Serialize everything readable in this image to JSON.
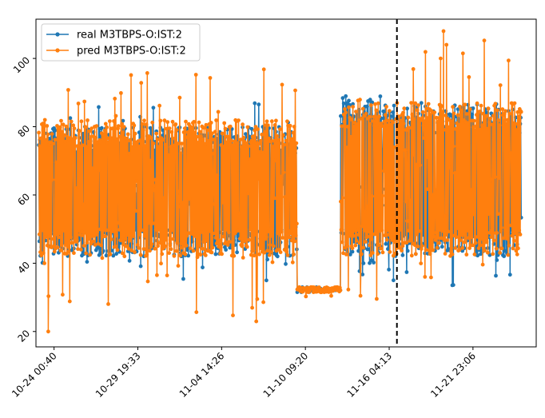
{
  "chart_data": {
    "type": "line",
    "title": "",
    "xlabel": "",
    "ylabel": "",
    "x_tick_labels": [
      "10-24 00:40",
      "10-29 19:33",
      "11-04 14:26",
      "11-10 09:20",
      "11-16 04:13",
      "11-21 23:06"
    ],
    "x_tick_positions_days": [
      0,
      5.786,
      11.573,
      17.359,
      23.146,
      28.932
    ],
    "x_range_days": [
      -1.25,
      33.3
    ],
    "y_ticks": [
      20,
      40,
      60,
      80,
      100
    ],
    "ylim": [
      15.5,
      111.5
    ],
    "grid": false,
    "legend_position": "upper-left",
    "vertical_line": {
      "x_day": 23.68,
      "style": "dashed",
      "color": "#000000"
    },
    "series": [
      {
        "name": "real M3TBPS-O:IST:2",
        "color": "#1f77b4",
        "marker": "circle",
        "segments": [
          {
            "x_start": -1.05,
            "x_end": 16.8,
            "low": 33.5,
            "high": 88,
            "typical_low": 42,
            "typical_high": 80
          },
          {
            "x_start": 16.8,
            "x_end": 19.8,
            "low": 31.5,
            "high": 33,
            "typical_low": 32,
            "typical_high": 32.5
          },
          {
            "x_start": 19.8,
            "x_end": 23.2,
            "low": 36,
            "high": 89,
            "typical_low": 42,
            "typical_high": 88
          },
          {
            "x_start": 23.2,
            "x_end": 32.3,
            "low": 32,
            "high": 87,
            "typical_low": 42,
            "typical_high": 86
          }
        ]
      },
      {
        "name": "pred M3TBPS-O:IST:2",
        "color": "#ff7f0e",
        "marker": "circle",
        "segments": [
          {
            "x_start": -1.05,
            "x_end": 16.8,
            "low": 20,
            "high": 97,
            "typical_low": 42,
            "typical_high": 82
          },
          {
            "x_start": 16.8,
            "x_end": 19.8,
            "low": 29.5,
            "high": 33,
            "typical_low": 31.5,
            "typical_high": 33
          },
          {
            "x_start": 19.8,
            "x_end": 23.2,
            "low": 28.5,
            "high": 88,
            "typical_low": 42,
            "typical_high": 87
          },
          {
            "x_start": 23.2,
            "x_end": 32.3,
            "low": 31,
            "high": 108,
            "typical_low": 42,
            "typical_high": 87
          }
        ],
        "notable_points": [
          {
            "x_day": -0.4,
            "y": 20
          },
          {
            "x_day": 26.9,
            "y": 108
          },
          {
            "x_day": 27.1,
            "y": 104
          },
          {
            "x_day": 26.7,
            "y": 100
          }
        ]
      }
    ]
  }
}
